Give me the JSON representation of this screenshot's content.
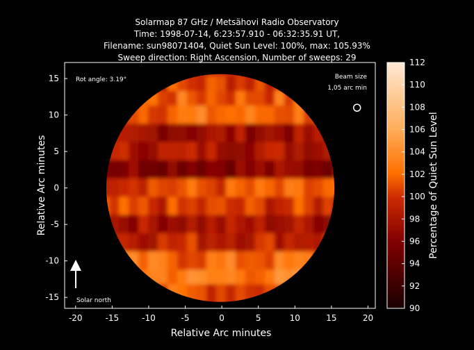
{
  "chart_data": {
    "type": "heatmap",
    "title_lines": [
      "Solarmap 87 GHz / Metsähovi Radio Observatory",
      "Time: 1998-07-14,  6:23:57.910 - 06:32:35.91 UT,",
      "Filename: sun98071404, Quiet Sun Level: 100%, max: 105.93%",
      "Sweep direction: Right Ascension, Number of sweeps: 29"
    ],
    "xlabel": "Relative Arc minutes",
    "ylabel": "Relative Arc minutes",
    "xlim": [
      -21.5,
      21
    ],
    "ylim": [
      -16.5,
      17.2
    ],
    "xticks": [
      -20,
      -15,
      -10,
      -5,
      0,
      5,
      10,
      15,
      20
    ],
    "yticks": [
      15,
      10,
      5,
      0,
      -5,
      -10,
      -15
    ],
    "colorbar": {
      "label": "Percentage of Quiet Sun Level",
      "range": [
        90,
        112
      ],
      "ticks": [
        112,
        110,
        108,
        106,
        104,
        102,
        100,
        98,
        96,
        94,
        92,
        90
      ]
    },
    "disk": {
      "center": [
        -0.2,
        0
      ],
      "radius_arcmin": 15.6
    },
    "row_intensity": {
      "y": [
        14,
        12,
        10,
        7.5,
        5,
        2.5,
        0,
        -2.5,
        -5,
        -7.5,
        -10,
        -12.5,
        -14.5
      ],
      "values": [
        100.5,
        101.5,
        102,
        97.5,
        98.5,
        96.5,
        101,
        100,
        98,
        99.5,
        102,
        103,
        101
      ]
    },
    "annotations": {
      "rot_angle": "Rot angle: 3.19°",
      "beam_size_line1": "Beam size",
      "beam_size_line2": "1,05 arc min",
      "solar_north": "Solar north"
    },
    "beam_position": [
      18.5,
      11
    ]
  }
}
